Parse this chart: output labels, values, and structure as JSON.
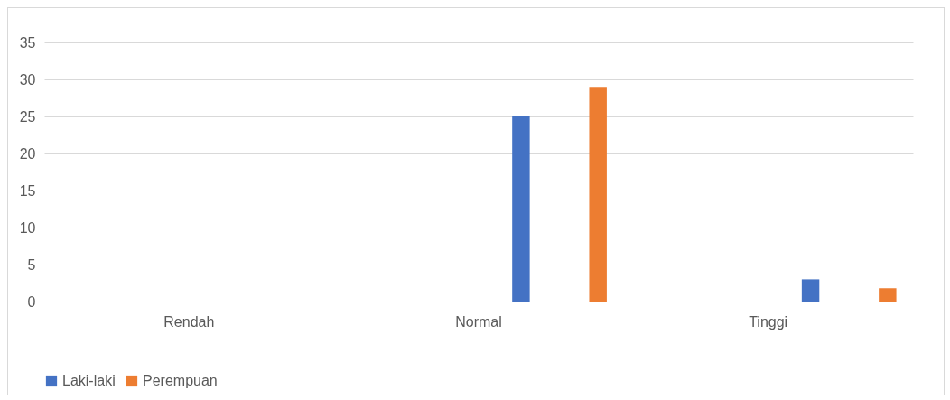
{
  "chart_data": {
    "type": "bar",
    "categories": [
      "Rendah",
      "Normal",
      "Tinggi"
    ],
    "series": [
      {
        "name": "Laki-laki",
        "color": "#4472c4",
        "values": [
          0,
          25,
          3
        ]
      },
      {
        "name": "Perempuan",
        "color": "#ed7d31",
        "values": [
          0,
          29,
          1.8
        ]
      }
    ],
    "ylim": [
      0,
      35
    ],
    "yticks": [
      0,
      5,
      10,
      15,
      20,
      25,
      30,
      35
    ],
    "grid": "y",
    "legend": "bottom"
  }
}
